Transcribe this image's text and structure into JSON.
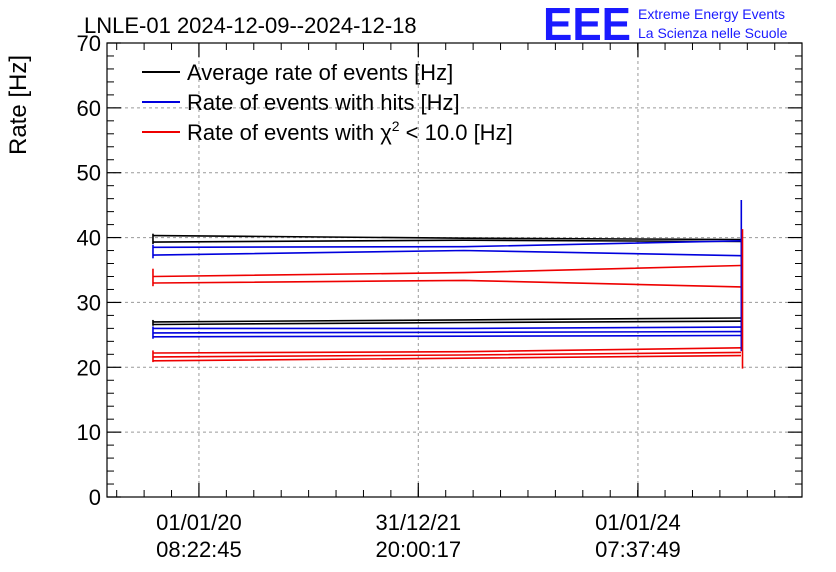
{
  "header": {
    "title": "LNLE-01 2024-12-09--2024-12-18",
    "logo_mark": "EEE",
    "logo_line1": "Extreme Energy Events",
    "logo_line2": "La Scienza nelle Scuole"
  },
  "colors": {
    "avg": "#000000",
    "hits": "#0000dd",
    "chi2": "#ee0000",
    "grid": "#9a9a9a",
    "logo": "#1a1aff"
  },
  "chart_data": {
    "type": "line",
    "title": "LNLE-01 2024-12-09--2024-12-18",
    "xlabel": "",
    "ylabel": "Rate [Hz]",
    "ylim": [
      0,
      70
    ],
    "grid": true,
    "legend_position": "top-left",
    "x_axis": {
      "type": "date",
      "range": [
        "2019-03-01",
        "2025-06-30"
      ],
      "tick_labels": [
        {
          "date": "2020-01-01",
          "line1": "01/01/20",
          "line2": "08:22:45"
        },
        {
          "date": "2021-12-31",
          "line1": "31/12/21",
          "line2": "20:00:17"
        },
        {
          "date": "2024-01-01",
          "line1": "01/01/24",
          "line2": "07:37:49"
        }
      ]
    },
    "y_ticks": [
      0,
      10,
      20,
      30,
      40,
      50,
      60,
      70
    ],
    "legend": [
      {
        "key": "avg",
        "label_pre": "Average rate of events [Hz]",
        "sup": "",
        "label_post": ""
      },
      {
        "key": "hits",
        "label_pre": "Rate of events with hits [Hz]",
        "sup": "",
        "label_post": ""
      },
      {
        "key": "chi2",
        "label_pre": "Rate of events with χ",
        "sup": "2",
        "label_post": " < 10.0 [Hz]"
      }
    ],
    "series": [
      {
        "key": "avg",
        "name": "Average rate of events [Hz]",
        "points": [
          [
            "2019-08-01",
            40.3
          ],
          [
            "2020-06-01",
            40.2
          ],
          [
            "2022-06-01",
            39.9
          ],
          [
            "2024-12-09",
            39.7
          ]
        ]
      },
      {
        "key": "avg",
        "points": [
          [
            "2019-08-01",
            39.3
          ],
          [
            "2022-06-01",
            39.6
          ],
          [
            "2024-12-09",
            39.4
          ]
        ]
      },
      {
        "key": "avg",
        "points": [
          [
            "2019-08-01",
            27.0
          ],
          [
            "2022-06-01",
            27.3
          ],
          [
            "2024-12-09",
            27.6
          ]
        ]
      },
      {
        "key": "avg",
        "points": [
          [
            "2019-08-01",
            26.6
          ],
          [
            "2022-06-01",
            26.9
          ],
          [
            "2024-12-09",
            27.1
          ]
        ]
      },
      {
        "key": "hits",
        "name": "Rate of events with hits [Hz]",
        "points": [
          [
            "2019-08-01",
            38.5
          ],
          [
            "2022-06-01",
            38.6
          ],
          [
            "2024-12-09",
            39.5
          ]
        ]
      },
      {
        "key": "hits",
        "points": [
          [
            "2019-08-01",
            37.3
          ],
          [
            "2022-06-01",
            38.0
          ],
          [
            "2024-12-09",
            37.2
          ]
        ]
      },
      {
        "key": "hits",
        "points": [
          [
            "2019-08-01",
            26.0
          ],
          [
            "2022-06-01",
            26.0
          ],
          [
            "2024-12-09",
            26.2
          ]
        ]
      },
      {
        "key": "hits",
        "points": [
          [
            "2019-08-01",
            25.3
          ],
          [
            "2022-06-01",
            25.4
          ],
          [
            "2024-12-09",
            25.5
          ]
        ]
      },
      {
        "key": "hits",
        "points": [
          [
            "2019-08-01",
            24.7
          ],
          [
            "2022-06-01",
            24.8
          ],
          [
            "2024-12-09",
            24.9
          ]
        ]
      },
      {
        "key": "chi2",
        "name": "Rate of events with χ2 < 10.0 [Hz]",
        "points": [
          [
            "2019-08-01",
            34.0
          ],
          [
            "2022-06-01",
            34.6
          ],
          [
            "2024-12-09",
            35.7
          ]
        ]
      },
      {
        "key": "chi2",
        "points": [
          [
            "2019-08-01",
            33.0
          ],
          [
            "2022-06-01",
            33.4
          ],
          [
            "2024-12-09",
            32.4
          ]
        ]
      },
      {
        "key": "chi2",
        "points": [
          [
            "2019-08-01",
            22.2
          ],
          [
            "2022-06-01",
            22.4
          ],
          [
            "2024-12-09",
            23.0
          ]
        ]
      },
      {
        "key": "chi2",
        "points": [
          [
            "2019-08-01",
            21.6
          ],
          [
            "2022-06-01",
            21.9
          ],
          [
            "2024-12-09",
            22.3
          ]
        ]
      },
      {
        "key": "chi2",
        "points": [
          [
            "2019-08-01",
            21.0
          ],
          [
            "2022-06-01",
            21.4
          ],
          [
            "2024-12-09",
            21.8
          ]
        ]
      }
    ],
    "start_spikes": [
      {
        "key": "avg",
        "x": "2019-08-01",
        "y": [
          39.0,
          40.6
        ]
      },
      {
        "key": "hits",
        "x": "2019-08-01",
        "y": [
          36.8,
          38.9
        ]
      },
      {
        "key": "chi2",
        "x": "2019-08-01",
        "y": [
          32.5,
          35.2
        ]
      },
      {
        "key": "avg",
        "x": "2019-08-01",
        "y": [
          26.4,
          27.3
        ]
      },
      {
        "key": "hits",
        "x": "2019-08-01",
        "y": [
          24.4,
          26.3
        ]
      },
      {
        "key": "chi2",
        "x": "2019-08-01",
        "y": [
          20.8,
          22.6
        ]
      }
    ],
    "end_spikes": [
      {
        "key": "avg",
        "x": "2024-12-12",
        "y": [
          24.5,
          40.5
        ]
      },
      {
        "key": "hits",
        "x": "2024-12-10",
        "y": [
          22.5,
          45.8
        ]
      },
      {
        "key": "chi2",
        "x": "2024-12-14",
        "y": [
          19.8,
          41.3
        ]
      }
    ]
  }
}
